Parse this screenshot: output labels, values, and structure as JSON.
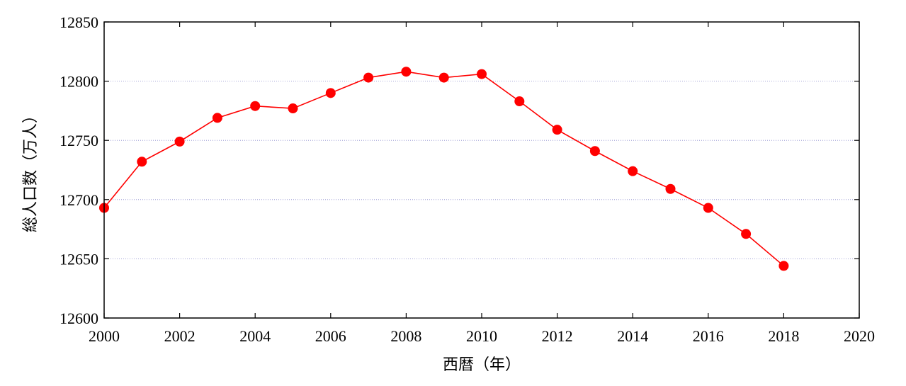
{
  "chart_data": {
    "type": "line",
    "title": "",
    "xlabel": "西暦（年）",
    "ylabel": "総人口数（万人）",
    "xlim": [
      2000,
      2020
    ],
    "ylim": [
      12600,
      12850
    ],
    "x_ticks": [
      2000,
      2002,
      2004,
      2006,
      2008,
      2010,
      2012,
      2014,
      2016,
      2018,
      2020
    ],
    "y_ticks": [
      12600,
      12650,
      12700,
      12750,
      12800,
      12850
    ],
    "grid": "horizontal dotted",
    "series": [
      {
        "color": "#ff0000",
        "marker": "circle",
        "x": [
          2000,
          2001,
          2002,
          2003,
          2004,
          2005,
          2006,
          2007,
          2008,
          2009,
          2010,
          2011,
          2012,
          2013,
          2014,
          2015,
          2016,
          2017,
          2018
        ],
        "y": [
          12693,
          12732,
          12749,
          12769,
          12779,
          12777,
          12790,
          12803,
          12808,
          12803,
          12806,
          12783,
          12759,
          12741,
          12724,
          12709,
          12693,
          12671,
          12644
        ]
      }
    ]
  }
}
